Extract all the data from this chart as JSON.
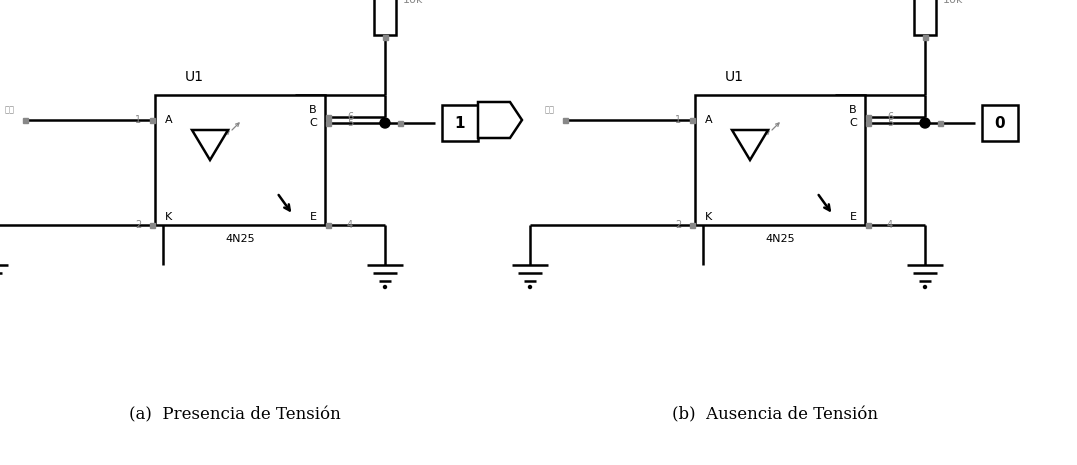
{
  "fig_width": 10.77,
  "fig_height": 4.65,
  "dpi": 100,
  "bg_color": "#ffffff",
  "line_color": "#000000",
  "gray_color": "#888888",
  "caption_a": "(a)  Presencia de Tensión",
  "caption_b": "(b)  Ausencia de Tensión",
  "caption_fontsize": 12,
  "circuit_a": {
    "input_label": "0",
    "output_label": "1"
  },
  "circuit_b": {
    "input_label": "1",
    "output_label": "0"
  }
}
